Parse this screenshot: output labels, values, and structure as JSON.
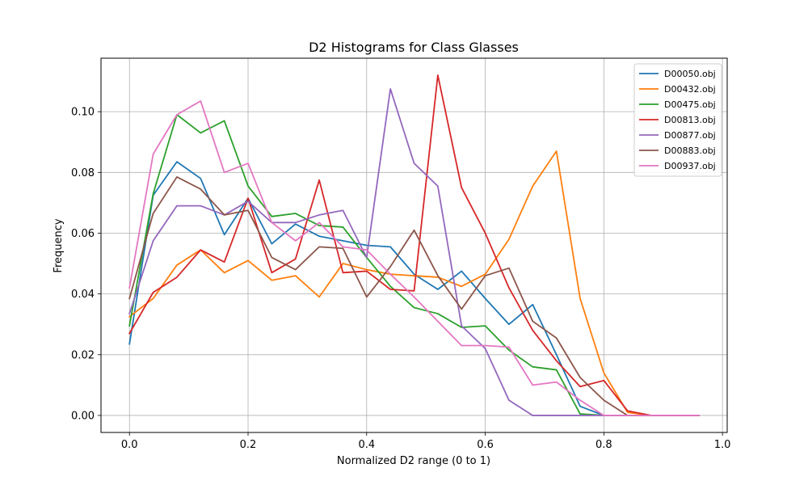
{
  "chart_data": {
    "type": "line",
    "title": "D2 Histograms for Class Glasses",
    "xlabel": "Normalized D2 range (0 to 1)",
    "ylabel": "Frequency",
    "xlim": [
      -0.048,
      1.008
    ],
    "ylim": [
      -0.0056,
      0.1176
    ],
    "xticks": [
      0.0,
      0.2,
      0.4,
      0.6,
      0.8,
      1.0
    ],
    "xtick_labels": [
      "0.0",
      "0.2",
      "0.4",
      "0.6",
      "0.8",
      "1.0"
    ],
    "yticks": [
      0.0,
      0.02,
      0.04,
      0.06,
      0.08,
      0.1
    ],
    "ytick_labels": [
      "0.00",
      "0.02",
      "0.04",
      "0.06",
      "0.08",
      "0.10"
    ],
    "grid": true,
    "legend_position": "top-right",
    "x": [
      0.0,
      0.04,
      0.08,
      0.12,
      0.16,
      0.2,
      0.24,
      0.28,
      0.32,
      0.36,
      0.4,
      0.44,
      0.48,
      0.52,
      0.56,
      0.6,
      0.64,
      0.68,
      0.72,
      0.76,
      0.8,
      0.84,
      0.88,
      0.92,
      0.96
    ],
    "series": [
      {
        "name": "D00050.obj",
        "color": "#1f77b4",
        "values": [
          0.0235,
          0.0725,
          0.0835,
          0.078,
          0.0595,
          0.0715,
          0.0565,
          0.063,
          0.059,
          0.0575,
          0.056,
          0.0555,
          0.0465,
          0.0415,
          0.0475,
          0.0385,
          0.03,
          0.0365,
          0.02,
          0.003,
          0.0,
          0.0,
          0.0,
          0.0,
          0.0
        ]
      },
      {
        "name": "D00432.obj",
        "color": "#ff7f0e",
        "values": [
          0.0325,
          0.0385,
          0.0495,
          0.0545,
          0.047,
          0.051,
          0.0445,
          0.046,
          0.039,
          0.05,
          0.048,
          0.0465,
          0.046,
          0.0455,
          0.0425,
          0.0465,
          0.058,
          0.0755,
          0.087,
          0.0385,
          0.014,
          0.001,
          0.0,
          0.0,
          0.0
        ]
      },
      {
        "name": "D00475.obj",
        "color": "#2ca02c",
        "values": [
          0.0295,
          0.073,
          0.099,
          0.093,
          0.097,
          0.0755,
          0.0655,
          0.0665,
          0.0625,
          0.062,
          0.052,
          0.0425,
          0.0355,
          0.0335,
          0.029,
          0.0295,
          0.0215,
          0.016,
          0.015,
          0.0005,
          0.0,
          0.0,
          0.0,
          0.0,
          0.0
        ]
      },
      {
        "name": "D00813.obj",
        "color": "#d62728",
        "values": [
          0.027,
          0.0405,
          0.0455,
          0.0545,
          0.0505,
          0.0715,
          0.047,
          0.0515,
          0.0775,
          0.047,
          0.0475,
          0.0415,
          0.041,
          0.112,
          0.075,
          0.06,
          0.042,
          0.028,
          0.018,
          0.0095,
          0.0115,
          0.0015,
          0.0,
          0.0,
          0.0
        ]
      },
      {
        "name": "D00877.obj",
        "color": "#9467bd",
        "values": [
          0.0335,
          0.0575,
          0.069,
          0.069,
          0.066,
          0.0705,
          0.0635,
          0.0635,
          0.066,
          0.0675,
          0.052,
          0.1075,
          0.083,
          0.0755,
          0.0295,
          0.022,
          0.005,
          0.0,
          0.0,
          0.0,
          0.0,
          0.0,
          0.0,
          0.0,
          0.0
        ]
      },
      {
        "name": "D00883.obj",
        "color": "#8c564b",
        "values": [
          0.0385,
          0.0665,
          0.0785,
          0.0745,
          0.066,
          0.0675,
          0.052,
          0.048,
          0.0555,
          0.055,
          0.039,
          0.049,
          0.061,
          0.046,
          0.035,
          0.046,
          0.0485,
          0.031,
          0.0255,
          0.0125,
          0.005,
          0.0,
          0.0,
          0.0,
          0.0
        ]
      },
      {
        "name": "D00937.obj",
        "color": "#e377c2",
        "values": [
          0.042,
          0.086,
          0.099,
          0.1035,
          0.08,
          0.083,
          0.0635,
          0.0575,
          0.0635,
          0.0555,
          0.0545,
          0.0465,
          0.039,
          0.031,
          0.023,
          0.023,
          0.0225,
          0.01,
          0.011,
          0.005,
          0.0,
          0.0,
          0.0,
          0.0,
          0.0
        ]
      }
    ]
  }
}
